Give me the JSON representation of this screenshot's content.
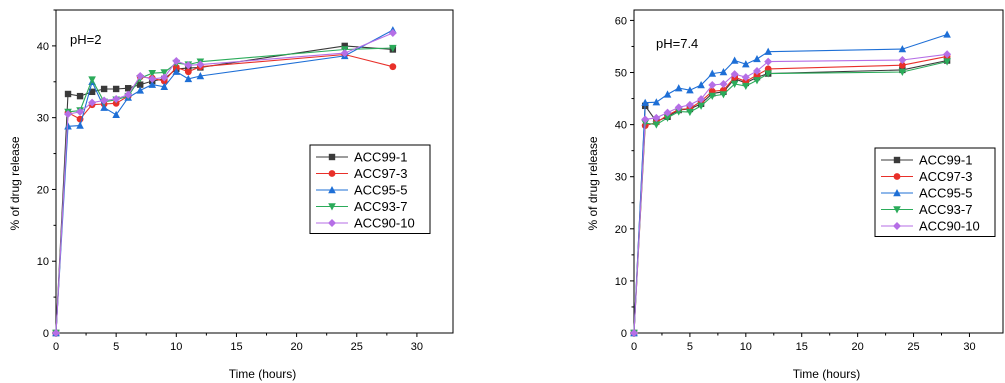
{
  "chart_data": [
    {
      "type": "line",
      "annotation": "pH=2",
      "xlabel": "Time (hours)",
      "ylabel": "% of drug release",
      "xlim": [
        0,
        33
      ],
      "ylim": [
        0,
        45
      ],
      "xticks": [
        0,
        5,
        10,
        15,
        20,
        25,
        30
      ],
      "yticks": [
        0,
        10,
        20,
        30,
        40
      ],
      "grid": false,
      "legend_position": "right-middle",
      "series": [
        {
          "name": "ACC99-1",
          "color": "#3a3a3a",
          "marker": "square",
          "x": [
            0,
            1,
            2,
            3,
            4,
            5,
            6,
            7,
            8,
            9,
            10,
            11,
            12,
            24,
            28
          ],
          "y": [
            0,
            33.3,
            33.0,
            33.6,
            34.0,
            34.0,
            34.1,
            34.6,
            35.1,
            35.4,
            36.8,
            36.9,
            37.0,
            40.0,
            39.5
          ]
        },
        {
          "name": "ACC97-3",
          "color": "#e8302a",
          "marker": "circle",
          "x": [
            0,
            1,
            2,
            3,
            4,
            5,
            6,
            7,
            8,
            9,
            10,
            11,
            12,
            24,
            28
          ],
          "y": [
            0,
            30.7,
            29.8,
            31.8,
            31.9,
            32.0,
            33.0,
            35.7,
            35.5,
            35.1,
            37.0,
            36.4,
            37.1,
            38.8,
            37.1
          ]
        },
        {
          "name": "ACC95-5",
          "color": "#1e6fd6",
          "marker": "triangle-up",
          "x": [
            0,
            1,
            2,
            3,
            4,
            5,
            6,
            7,
            8,
            9,
            10,
            11,
            12,
            24,
            28
          ],
          "y": [
            0,
            28.8,
            28.9,
            35.0,
            31.4,
            30.4,
            32.8,
            33.8,
            34.6,
            34.3,
            36.4,
            35.4,
            35.8,
            38.6,
            42.2
          ]
        },
        {
          "name": "ACC93-7",
          "color": "#2bab5a",
          "marker": "triangle-down",
          "x": [
            0,
            1,
            2,
            3,
            4,
            5,
            6,
            7,
            8,
            9,
            10,
            11,
            12,
            24,
            28
          ],
          "y": [
            0,
            30.8,
            31.0,
            35.3,
            32.2,
            32.5,
            33.0,
            35.5,
            36.2,
            36.3,
            37.6,
            37.4,
            37.8,
            39.5,
            39.7
          ]
        },
        {
          "name": "ACC90-10",
          "color": "#b56ee6",
          "marker": "diamond",
          "x": [
            0,
            1,
            2,
            3,
            4,
            5,
            6,
            7,
            8,
            9,
            10,
            11,
            12,
            24,
            28
          ],
          "y": [
            0,
            30.5,
            30.8,
            32.1,
            32.4,
            32.6,
            33.2,
            35.8,
            35.4,
            35.6,
            37.9,
            37.3,
            37.4,
            39.0,
            41.8
          ]
        }
      ]
    },
    {
      "type": "line",
      "annotation": "pH=7.4",
      "xlabel": "Time (hours)",
      "ylabel": "% of drug release",
      "xlim": [
        0,
        33
      ],
      "ylim": [
        0,
        62
      ],
      "xticks": [
        0,
        5,
        10,
        15,
        20,
        25,
        30
      ],
      "yticks": [
        0,
        10,
        20,
        30,
        40,
        50,
        60
      ],
      "grid": false,
      "legend_position": "right-middle",
      "series": [
        {
          "name": "ACC99-1",
          "color": "#3a3a3a",
          "marker": "square",
          "x": [
            0,
            1,
            2,
            3,
            4,
            5,
            6,
            7,
            8,
            9,
            10,
            11,
            12,
            24,
            28
          ],
          "y": [
            0,
            43.6,
            40.6,
            41.5,
            42.8,
            43.0,
            44.0,
            46.0,
            46.3,
            48.8,
            48.0,
            49.1,
            49.8,
            50.5,
            52.3
          ]
        },
        {
          "name": "ACC97-3",
          "color": "#e8302a",
          "marker": "circle",
          "x": [
            0,
            1,
            2,
            3,
            4,
            5,
            6,
            7,
            8,
            9,
            10,
            11,
            12,
            24,
            28
          ],
          "y": [
            0,
            39.8,
            40.4,
            41.8,
            42.9,
            43.1,
            44.5,
            46.4,
            46.6,
            49.1,
            48.3,
            49.5,
            50.7,
            51.4,
            53.1
          ]
        },
        {
          "name": "ACC95-5",
          "color": "#1e6fd6",
          "marker": "triangle-up",
          "x": [
            0,
            1,
            2,
            3,
            4,
            5,
            6,
            7,
            8,
            9,
            10,
            11,
            12,
            24,
            28
          ],
          "y": [
            0,
            44.2,
            44.3,
            45.8,
            47.0,
            46.6,
            47.6,
            49.8,
            50.1,
            52.3,
            51.6,
            52.6,
            54.0,
            54.5,
            57.3
          ]
        },
        {
          "name": "ACC93-7",
          "color": "#2bab5a",
          "marker": "triangle-down",
          "x": [
            0,
            1,
            2,
            3,
            4,
            5,
            6,
            7,
            8,
            9,
            10,
            11,
            12,
            24,
            28
          ],
          "y": [
            0,
            40.3,
            40.0,
            41.3,
            42.5,
            42.4,
            43.6,
            45.5,
            45.8,
            47.8,
            47.4,
            48.5,
            49.8,
            50.1,
            52.1
          ]
        },
        {
          "name": "ACC90-10",
          "color": "#b56ee6",
          "marker": "diamond",
          "x": [
            0,
            1,
            2,
            3,
            4,
            5,
            6,
            7,
            8,
            9,
            10,
            11,
            12,
            24,
            28
          ],
          "y": [
            0,
            41.0,
            41.3,
            42.3,
            43.3,
            43.8,
            44.9,
            47.6,
            47.8,
            49.7,
            49.1,
            50.3,
            52.1,
            52.4,
            53.5
          ]
        }
      ]
    }
  ]
}
